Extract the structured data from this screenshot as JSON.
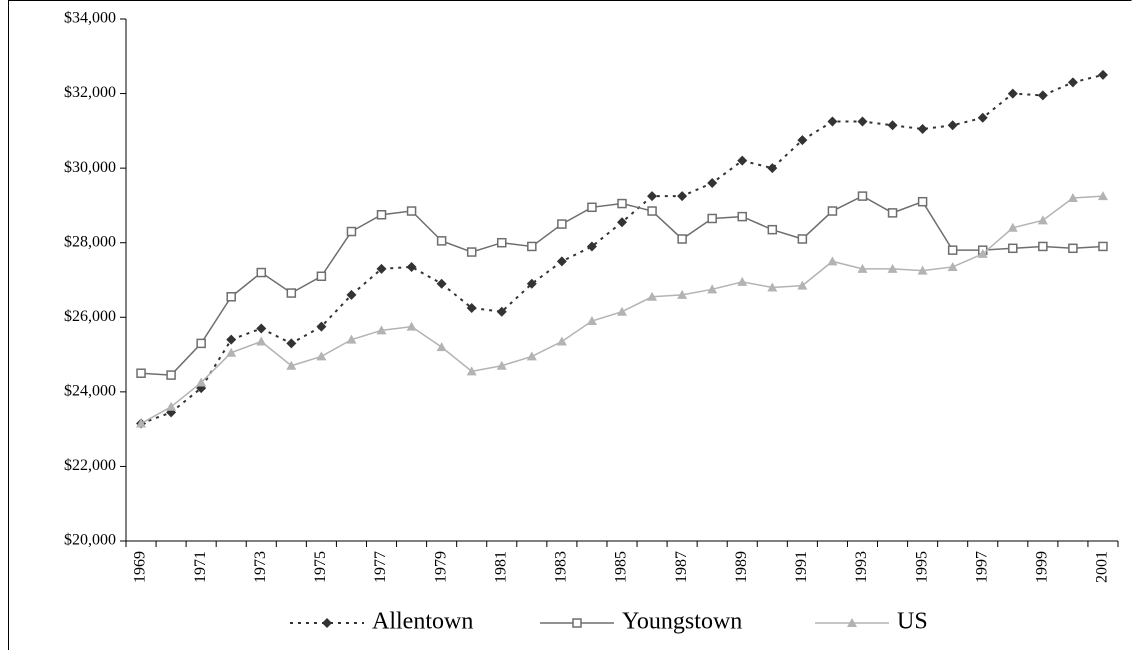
{
  "chart_data": {
    "type": "line",
    "categories": [
      "1969",
      null,
      "1971",
      null,
      "1973",
      null,
      "1975",
      null,
      "1977",
      null,
      "1979",
      null,
      "1981",
      null,
      "1983",
      null,
      "1985",
      null,
      "1987",
      null,
      "1989",
      null,
      "1991",
      null,
      "1993",
      null,
      "1995",
      null,
      "1997",
      null,
      "1999",
      null,
      "2001"
    ],
    "series": [
      {
        "name": "Allentown",
        "color": "#333333",
        "marker": "diamond",
        "line_style": "dotted",
        "values": [
          23150,
          23450,
          24100,
          25400,
          25700,
          25300,
          25750,
          26600,
          27300,
          27350,
          26900,
          26250,
          26150,
          26900,
          27500,
          27900,
          28550,
          29250,
          29250,
          29600,
          30200,
          30000,
          30750,
          31250,
          31250,
          31150,
          31050,
          31150,
          31350,
          32000,
          31950,
          32300,
          32500
        ]
      },
      {
        "name": "Youngstown",
        "color": "#6e6e6e",
        "marker": "square",
        "line_style": "solid",
        "values": [
          24500,
          24450,
          25300,
          26550,
          27200,
          26650,
          27100,
          28300,
          28750,
          28850,
          28050,
          27750,
          28000,
          27900,
          28500,
          28950,
          29050,
          28850,
          28100,
          28650,
          28700,
          28350,
          28100,
          28850,
          29250,
          28800,
          29100,
          27800,
          27800,
          27850,
          27900,
          27850,
          27900
        ]
      },
      {
        "name": "US",
        "color": "#b3b3b3",
        "marker": "triangle",
        "line_style": "solid",
        "values": [
          23150,
          23600,
          24250,
          25050,
          25350,
          24700,
          24950,
          25400,
          25650,
          25750,
          25200,
          24550,
          24700,
          24950,
          25350,
          25900,
          26150,
          26550,
          26600,
          26750,
          26950,
          26800,
          26850,
          27500,
          27300,
          27300,
          27250,
          27350,
          27700,
          28400,
          28600,
          29200,
          29250
        ]
      }
    ],
    "ylim": [
      20000,
      34000
    ],
    "yticks": [
      {
        "value": 20000,
        "label": "$20,000"
      },
      {
        "value": 22000,
        "label": "$22,000"
      },
      {
        "value": 24000,
        "label": "$24,000"
      },
      {
        "value": 26000,
        "label": "$26,000"
      },
      {
        "value": 28000,
        "label": "$28,000"
      },
      {
        "value": 30000,
        "label": "$30,000"
      },
      {
        "value": 32000,
        "label": "$32,000"
      },
      {
        "value": 34000,
        "label": "$34,000"
      }
    ],
    "grid": false,
    "legend": "bottom"
  }
}
